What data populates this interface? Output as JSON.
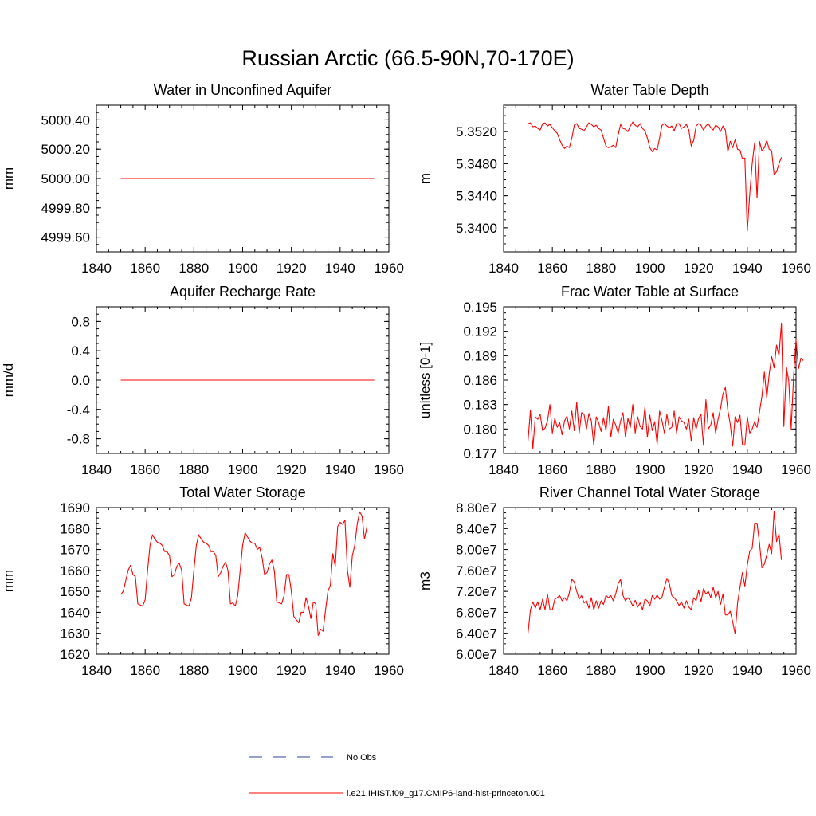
{
  "title": "Russian Arctic (66.5-90N,70-170E)",
  "legend": {
    "entries": [
      {
        "label": "No Obs",
        "color": "#2b3fa0",
        "dash": "dashed"
      },
      {
        "label": "i.e21.IHIST.f09_g17.CMIP6-land-hist-princeton.001",
        "color": "#ff0000",
        "dash": "solid"
      }
    ]
  },
  "chart_data": [
    {
      "type": "line",
      "title": "Water in Unconfined Aquifer",
      "xlabel": "",
      "ylabel": "mm",
      "xlim": [
        1840,
        1960
      ],
      "ylim": [
        4999.5,
        5000.5
      ],
      "xticks": [
        1840,
        1860,
        1880,
        1900,
        1920,
        1940,
        1960
      ],
      "yticks": [
        4999.6,
        4999.8,
        5000.0,
        5000.2,
        5000.4
      ],
      "ytick_labels": [
        "4999.60",
        "4999.80",
        "5000.00",
        "5000.20",
        "5000.40"
      ],
      "series": [
        {
          "color": "#ff0000",
          "x": [
            1850,
            1954
          ],
          "values": [
            5000.0,
            5000.0
          ]
        }
      ]
    },
    {
      "type": "line",
      "title": "Water Table Depth",
      "xlabel": "",
      "ylabel": "m",
      "xlim": [
        1840,
        1960
      ],
      "ylim": [
        5.337,
        5.3553
      ],
      "xticks": [
        1840,
        1860,
        1880,
        1900,
        1920,
        1940,
        1960
      ],
      "yticks": [
        5.34,
        5.344,
        5.348,
        5.352
      ],
      "ytick_labels": [
        "5.3400",
        "5.3440",
        "5.3480",
        "5.3520"
      ],
      "series": [
        {
          "color": "#ff0000",
          "x0": 1850,
          "values": [
            5.353,
            5.3531,
            5.3526,
            5.3527,
            5.3524,
            5.3522,
            5.353,
            5.3531,
            5.3527,
            5.3529,
            5.3525,
            5.3521,
            5.3518,
            5.351,
            5.3503,
            5.3499,
            5.3502,
            5.35,
            5.3512,
            5.3528,
            5.353,
            5.3524,
            5.3523,
            5.3521,
            5.3526,
            5.3531,
            5.3529,
            5.3526,
            5.3528,
            5.3524,
            5.3522,
            5.3512,
            5.3502,
            5.35,
            5.3501,
            5.3503,
            5.35,
            5.3516,
            5.3529,
            5.3524,
            5.3523,
            5.352,
            5.3527,
            5.3532,
            5.3528,
            5.3526,
            5.353,
            5.3524,
            5.3521,
            5.3512,
            5.35,
            5.3495,
            5.3499,
            5.3497,
            5.3512,
            5.3528,
            5.353,
            5.3527,
            5.3525,
            5.3527,
            5.3521,
            5.353,
            5.353,
            5.3524,
            5.3526,
            5.3529,
            5.3522,
            5.3502,
            5.3509,
            5.3527,
            5.353,
            5.3528,
            5.3522,
            5.3527,
            5.353,
            5.3525,
            5.3522,
            5.3528,
            5.3526,
            5.352,
            5.3527,
            5.3522,
            5.3495,
            5.3508,
            5.35,
            5.351,
            5.3498,
            5.3497,
            5.3486,
            5.3487,
            5.3396,
            5.3442,
            5.348,
            5.3506,
            5.3437,
            5.3508,
            5.3496,
            5.35,
            5.3509,
            5.3498,
            5.3496,
            5.3466,
            5.347,
            5.348,
            5.3488
          ]
        }
      ]
    },
    {
      "type": "line",
      "title": "Aquifer Recharge Rate",
      "xlabel": "",
      "ylabel": "mm/d",
      "xlim": [
        1840,
        1960
      ],
      "ylim": [
        -1.0,
        1.0
      ],
      "xticks": [
        1840,
        1860,
        1880,
        1900,
        1920,
        1940,
        1960
      ],
      "yticks": [
        -0.8,
        -0.4,
        0.0,
        0.4,
        0.8
      ],
      "ytick_labels": [
        "-0.8",
        "-0.4",
        "0.0",
        "0.4",
        "0.8"
      ],
      "series": [
        {
          "color": "#ff0000",
          "x": [
            1850,
            1954
          ],
          "values": [
            0.0,
            0.0
          ]
        }
      ]
    },
    {
      "type": "line",
      "title": "Frac Water Table at Surface",
      "xlabel": "",
      "ylabel": "unitless [0-1]",
      "xlim": [
        1840,
        1960
      ],
      "ylim": [
        0.177,
        0.195
      ],
      "xticks": [
        1840,
        1860,
        1880,
        1900,
        1920,
        1940,
        1960
      ],
      "yticks": [
        0.177,
        0.18,
        0.183,
        0.186,
        0.189,
        0.192,
        0.195
      ],
      "ytick_labels": [
        "0.177",
        "0.180",
        "0.183",
        "0.186",
        "0.189",
        "0.192",
        "0.195"
      ],
      "series": [
        {
          "color": "#ff0000",
          "x0": 1850,
          "values": [
            0.1785,
            0.1823,
            0.1776,
            0.1815,
            0.1812,
            0.1818,
            0.1798,
            0.1801,
            0.181,
            0.183,
            0.1795,
            0.1813,
            0.1802,
            0.1808,
            0.1793,
            0.181,
            0.1816,
            0.18,
            0.1822,
            0.1798,
            0.1833,
            0.1795,
            0.182,
            0.1818,
            0.18,
            0.1819,
            0.181,
            0.178,
            0.1815,
            0.1808,
            0.1797,
            0.1814,
            0.1798,
            0.1828,
            0.179,
            0.1812,
            0.1805,
            0.1795,
            0.181,
            0.182,
            0.179,
            0.1813,
            0.1802,
            0.183,
            0.1795,
            0.1815,
            0.1803,
            0.18,
            0.1827,
            0.179,
            0.1817,
            0.1798,
            0.1809,
            0.1781,
            0.1822,
            0.181,
            0.1795,
            0.1818,
            0.18,
            0.1802,
            0.1822,
            0.1795,
            0.1815,
            0.181,
            0.1808,
            0.18,
            0.1812,
            0.1785,
            0.1814,
            0.18,
            0.1813,
            0.1818,
            0.178,
            0.1836,
            0.18,
            0.1805,
            0.182,
            0.1795,
            0.1812,
            0.1825,
            0.1843,
            0.1851,
            0.1823,
            0.1806,
            0.1779,
            0.1815,
            0.1808,
            0.1817,
            0.1781,
            0.178,
            0.1815,
            0.1795,
            0.18,
            0.1809,
            0.1802,
            0.1821,
            0.184,
            0.187,
            0.1838,
            0.1868,
            0.1889,
            0.1875,
            0.1903,
            0.189,
            0.193,
            0.1803,
            0.1875,
            0.186,
            0.18,
            0.1865,
            0.1909,
            0.1874,
            0.1887,
            0.1884
          ]
        }
      ]
    },
    {
      "type": "line",
      "title": "Total Water Storage",
      "xlabel": "",
      "ylabel": "mm",
      "xlim": [
        1840,
        1960
      ],
      "ylim": [
        1620,
        1690
      ],
      "xticks": [
        1840,
        1860,
        1880,
        1900,
        1920,
        1940,
        1960
      ],
      "yticks": [
        1620,
        1630,
        1640,
        1650,
        1660,
        1670,
        1680,
        1690
      ],
      "ytick_labels": [
        "1620",
        "1630",
        "1640",
        "1650",
        "1660",
        "1670",
        "1680",
        "1690"
      ],
      "series": [
        {
          "color": "#ff0000",
          "x0": 1850,
          "values": [
            1648.5,
            1650.0,
            1655.0,
            1660.0,
            1662.5,
            1658.0,
            1657.0,
            1644.0,
            1643.5,
            1643.0,
            1646.0,
            1660.0,
            1672.0,
            1677.0,
            1675.0,
            1673.5,
            1673.0,
            1672.0,
            1669.0,
            1669.0,
            1667.0,
            1657.0,
            1658.0,
            1662.0,
            1663.5,
            1660.0,
            1644.0,
            1643.5,
            1643.0,
            1647.0,
            1660.0,
            1672.0,
            1677.0,
            1675.0,
            1673.5,
            1673.0,
            1672.0,
            1669.0,
            1669.0,
            1667.0,
            1657.0,
            1659.0,
            1662.0,
            1664.0,
            1660.0,
            1644.0,
            1644.5,
            1643.0,
            1648.0,
            1660.0,
            1672.0,
            1678.0,
            1676.0,
            1674.0,
            1673.0,
            1673.0,
            1670.0,
            1671.0,
            1666.0,
            1658.0,
            1659.0,
            1663.0,
            1665.0,
            1660.0,
            1645.0,
            1644.5,
            1644.0,
            1648.0,
            1658.0,
            1658.0,
            1650.0,
            1638.0,
            1636.5,
            1635.0,
            1640.0,
            1640.0,
            1647.0,
            1643.0,
            1637.0,
            1645.0,
            1644.0,
            1629.0,
            1632.0,
            1631.0,
            1641.0,
            1650.0,
            1653.0,
            1668.0,
            1662.0,
            1681.0,
            1683.0,
            1682.0,
            1684.0,
            1660.0,
            1652.0,
            1667.0,
            1672.0,
            1682.0,
            1688.0,
            1686.0,
            1675.0,
            1681.0
          ]
        }
      ]
    },
    {
      "type": "line",
      "title": "River Channel Total Water Storage",
      "xlabel": "",
      "ylabel": "m3",
      "xlim": [
        1840,
        1960
      ],
      "ylim": [
        60000000,
        88000000
      ],
      "xticks": [
        1840,
        1860,
        1880,
        1900,
        1920,
        1940,
        1960
      ],
      "yticks": [
        60000000,
        64000000,
        68000000,
        72000000,
        76000000,
        80000000,
        84000000,
        88000000
      ],
      "ytick_labels": [
        "6.00e7",
        "6.40e7",
        "6.80e7",
        "7.20e7",
        "7.60e7",
        "8.00e7",
        "8.40e7",
        "8.80e7"
      ],
      "series": [
        {
          "color": "#ff0000",
          "x0": 1850,
          "values": [
            64000000,
            68500000,
            70000000,
            68800000,
            70000000,
            68500000,
            70500000,
            68500000,
            71500000,
            68500000,
            68500000,
            70500000,
            70800000,
            71200000,
            70200000,
            70800000,
            70200000,
            71800000,
            74300000,
            73800000,
            72000000,
            70500000,
            71200000,
            69800000,
            70200000,
            68800000,
            70800000,
            68500000,
            70200000,
            68800000,
            70200000,
            69500000,
            71200000,
            70800000,
            71200000,
            70200000,
            71500000,
            73500000,
            74300000,
            71200000,
            70200000,
            70800000,
            70200000,
            69200000,
            70300000,
            69000000,
            69800000,
            68500000,
            70500000,
            70200000,
            69200000,
            71200000,
            70500000,
            71300000,
            70500000,
            70900000,
            72800000,
            74500000,
            73500000,
            71200000,
            70800000,
            70200000,
            69300000,
            70000000,
            68800000,
            70200000,
            69000000,
            68500000,
            70800000,
            70200000,
            72200000,
            70000000,
            72500000,
            71500000,
            72000000,
            70800000,
            72800000,
            70800000,
            72000000,
            69500000,
            71500000,
            67500000,
            67500000,
            68200000,
            66200000,
            63900000,
            69800000,
            72800000,
            75600000,
            73000000,
            77000000,
            79700000,
            80200000,
            85000000,
            85000000,
            81200000,
            76500000,
            77200000,
            79000000,
            81000000,
            79200000,
            87300000,
            81500000,
            83000000,
            78000000
          ]
        }
      ]
    }
  ]
}
